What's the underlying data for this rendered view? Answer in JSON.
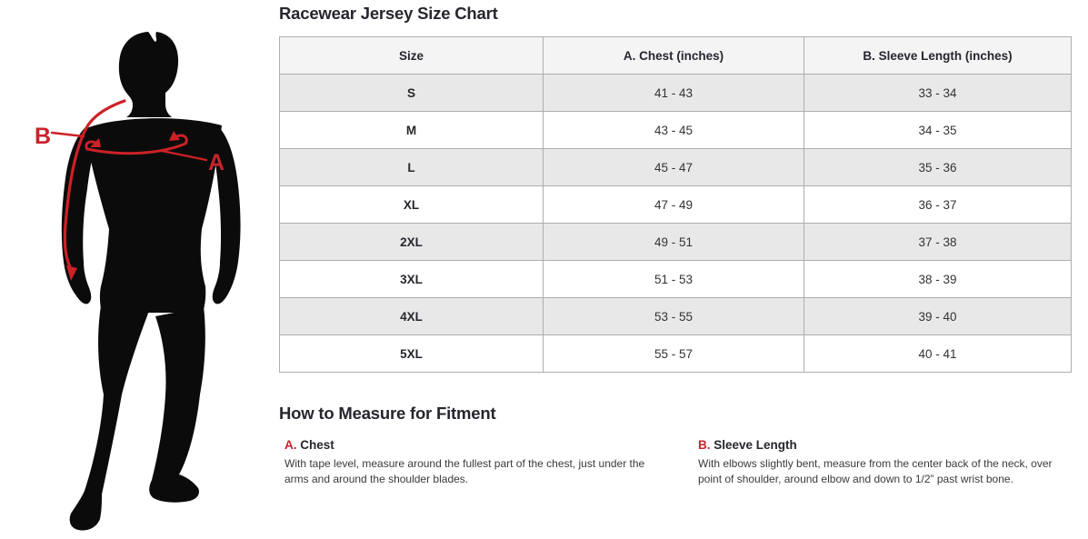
{
  "accent_color": "#c8232b",
  "silhouette_color": "#0b0b0b",
  "size_chart": {
    "title": "Racewear Jersey Size Chart",
    "columns": [
      "Size",
      "A. Chest (inches)",
      "B. Sleeve Length (inches)"
    ],
    "rows": [
      [
        "S",
        "41 - 43",
        "33 - 34"
      ],
      [
        "M",
        "43 - 45",
        "34 - 35"
      ],
      [
        "L",
        "45 - 47",
        "35 - 36"
      ],
      [
        "XL",
        "47 - 49",
        "36 - 37"
      ],
      [
        "2XL",
        "49 - 51",
        "37 - 38"
      ],
      [
        "3XL",
        "51 - 53",
        "38 - 39"
      ],
      [
        "4XL",
        "53 - 55",
        "39 - 40"
      ],
      [
        "5XL",
        "55 - 57",
        "40 - 41"
      ]
    ]
  },
  "figure": {
    "label_a": "A",
    "label_b": "B"
  },
  "how_to_measure": {
    "title": "How to Measure for Fitment",
    "items": [
      {
        "letter": "A.",
        "name": "Chest",
        "description": "With tape level, measure around the fullest part of the chest, just under the arms and around the shoulder blades."
      },
      {
        "letter": "B.",
        "name": "Sleeve Length",
        "description": "With elbows slightly bent, measure from the center back of the neck, over point of shoulder, around elbow and down to 1/2” past wrist bone."
      }
    ]
  }
}
